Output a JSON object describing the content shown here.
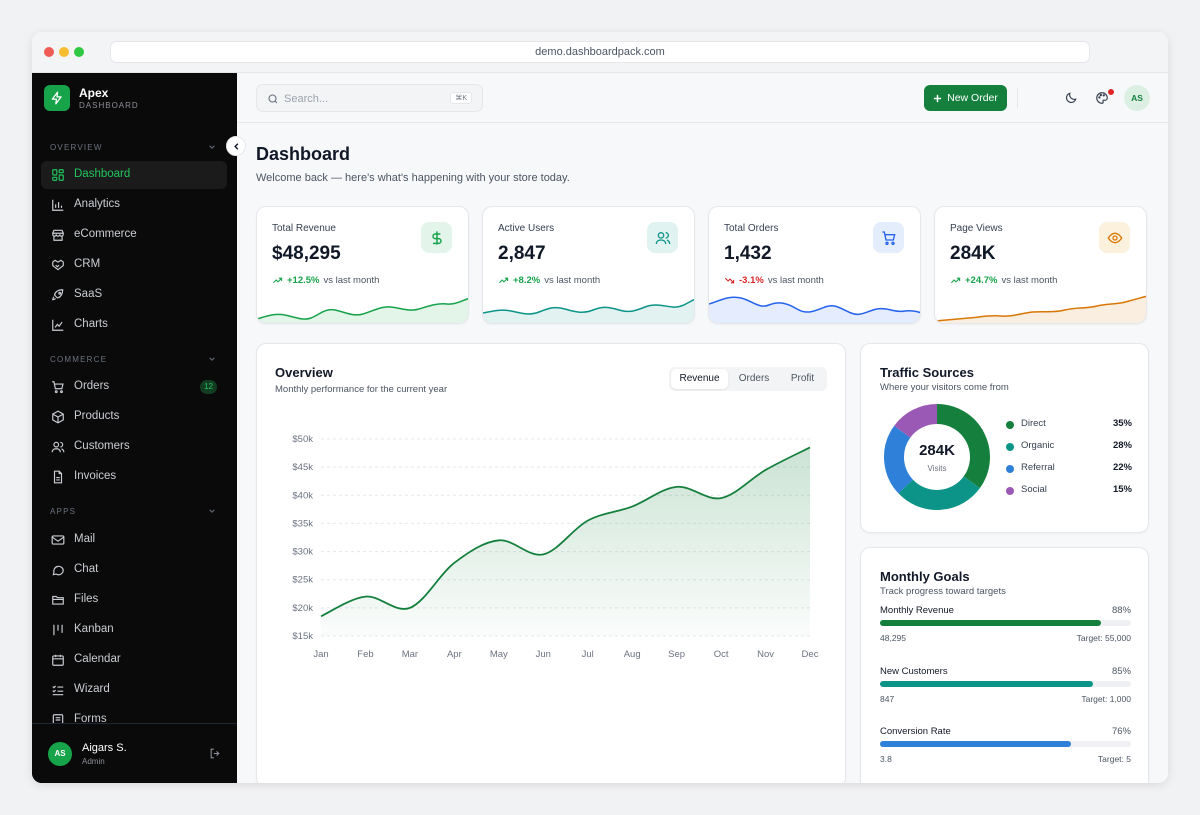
{
  "browser": {
    "url": "demo.dashboardpack.com"
  },
  "brand": {
    "name": "Apex",
    "subtitle": "DASHBOARD"
  },
  "sidebar": {
    "sections": [
      {
        "label": "OVERVIEW",
        "items": [
          {
            "label": "Dashboard",
            "icon": "grid-icon",
            "active": true
          },
          {
            "label": "Analytics",
            "icon": "bar-chart-icon"
          },
          {
            "label": "eCommerce",
            "icon": "store-icon"
          },
          {
            "label": "CRM",
            "icon": "handshake-icon"
          },
          {
            "label": "SaaS",
            "icon": "rocket-icon"
          },
          {
            "label": "Charts",
            "icon": "chart-icon"
          }
        ]
      },
      {
        "label": "COMMERCE",
        "items": [
          {
            "label": "Orders",
            "icon": "cart-icon",
            "badge": "12"
          },
          {
            "label": "Products",
            "icon": "box-icon"
          },
          {
            "label": "Customers",
            "icon": "users-icon"
          },
          {
            "label": "Invoices",
            "icon": "file-icon"
          }
        ]
      },
      {
        "label": "APPS",
        "items": [
          {
            "label": "Mail",
            "icon": "mail-icon"
          },
          {
            "label": "Chat",
            "icon": "chat-icon"
          },
          {
            "label": "Files",
            "icon": "folder-icon"
          },
          {
            "label": "Kanban",
            "icon": "kanban-icon"
          },
          {
            "label": "Calendar",
            "icon": "calendar-icon"
          },
          {
            "label": "Wizard",
            "icon": "list-check-icon"
          },
          {
            "label": "Forms",
            "icon": "form-icon"
          }
        ]
      }
    ],
    "user": {
      "initials": "AS",
      "name": "Aigars S.",
      "role": "Admin"
    }
  },
  "topbar": {
    "search_placeholder": "Search...",
    "search_shortcut": "⌘K",
    "new_order_label": "New Order",
    "avatar_initials": "AS"
  },
  "page": {
    "title": "Dashboard",
    "subtitle": "Welcome back — here's what's happening with your store today."
  },
  "stats": [
    {
      "label": "Total Revenue",
      "value": "$48,295",
      "change": "+12.5%",
      "compare": "vs last month",
      "direction": "up",
      "color": "#16a34a",
      "icon": "dollar-icon",
      "icon_bg": "#e3f5ea"
    },
    {
      "label": "Active Users",
      "value": "2,847",
      "change": "+8.2%",
      "compare": "vs last month",
      "direction": "up",
      "color": "#0d9488",
      "icon": "users-icon",
      "icon_bg": "#e0f3f1"
    },
    {
      "label": "Total Orders",
      "value": "1,432",
      "change": "-3.1%",
      "compare": "vs last month",
      "direction": "down",
      "color": "#2563eb",
      "icon": "cart-icon",
      "icon_bg": "#e3edfb"
    },
    {
      "label": "Page Views",
      "value": "284K",
      "change": "+24.7%",
      "compare": "vs last month",
      "direction": "up",
      "color": "#d97706",
      "icon": "eye-icon",
      "icon_bg": "#fbf1dd"
    }
  ],
  "overview": {
    "title": "Overview",
    "subtitle": "Monthly performance for the current year",
    "tabs": [
      "Revenue",
      "Orders",
      "Profit"
    ],
    "active_tab": "Revenue"
  },
  "chart_data": {
    "type": "area",
    "categories": [
      "Jan",
      "Feb",
      "Mar",
      "Apr",
      "May",
      "Jun",
      "Jul",
      "Aug",
      "Sep",
      "Oct",
      "Nov",
      "Dec"
    ],
    "series": [
      {
        "values": [
          18500,
          22000,
          20000,
          28000,
          32000,
          29500,
          35500,
          38000,
          41500,
          39500,
          44500,
          48500
        ]
      }
    ],
    "ylim": [
      15000,
      50000
    ],
    "yticks": [
      50000,
      45000,
      40000,
      35000,
      30000,
      25000,
      20000,
      15000
    ],
    "ytick_labels": [
      "$50k",
      "$45k",
      "$40k",
      "$35k",
      "$30k",
      "$25k",
      "$20k",
      "$15k"
    ],
    "color": "#15803d",
    "grid": true
  },
  "traffic": {
    "title": "Traffic Sources",
    "subtitle": "Where your visitors come from",
    "center_value": "284K",
    "center_label": "Visits",
    "sources": [
      {
        "name": "Direct",
        "percent": "35%",
        "value": 35,
        "color": "#15803d"
      },
      {
        "name": "Organic",
        "percent": "28%",
        "value": 28,
        "color": "#0d9488"
      },
      {
        "name": "Referral",
        "percent": "22%",
        "value": 22,
        "color": "#2f80d8"
      },
      {
        "name": "Social",
        "percent": "15%",
        "value": 15,
        "color": "#9b59b6"
      }
    ]
  },
  "goals": {
    "title": "Monthly Goals",
    "subtitle": "Track progress toward targets",
    "items": [
      {
        "label": "Monthly Revenue",
        "percent_label": "88%",
        "fraction": 0.88,
        "current": "48,295",
        "target": "Target: 55,000",
        "color": "#15803d"
      },
      {
        "label": "New Customers",
        "percent_label": "85%",
        "fraction": 0.85,
        "current": "847",
        "target": "Target: 1,000",
        "color": "#0d9488"
      },
      {
        "label": "Conversion Rate",
        "percent_label": "76%",
        "fraction": 0.76,
        "current": "3.8",
        "target": "Target: 5",
        "color": "#2f80d8"
      }
    ]
  }
}
